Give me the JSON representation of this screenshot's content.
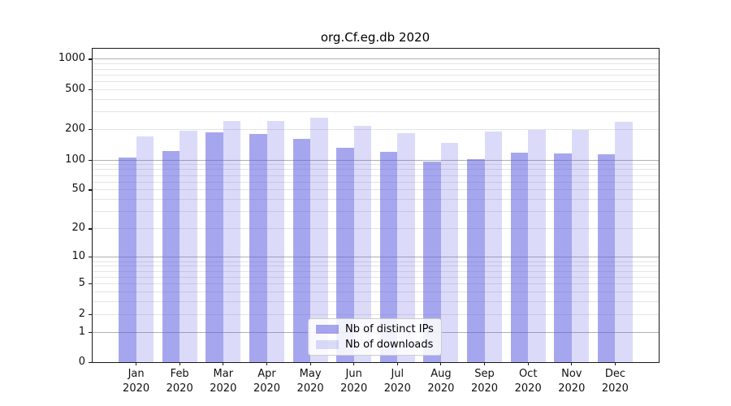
{
  "figure_title": "org.Cf.eg.db 2020",
  "chart_data": {
    "type": "bar",
    "title": "org.Cf.eg.db 2020",
    "year": "2020",
    "months": [
      "Jan",
      "Feb",
      "Mar",
      "Apr",
      "May",
      "Jun",
      "Jul",
      "Aug",
      "Sep",
      "Oct",
      "Nov",
      "Dec"
    ],
    "categories": [
      "Jan 2020",
      "Feb 2020",
      "Mar 2020",
      "Apr 2020",
      "May 2020",
      "Jun 2020",
      "Jul 2020",
      "Aug 2020",
      "Sep 2020",
      "Oct 2020",
      "Nov 2020",
      "Dec 2020"
    ],
    "series": [
      {
        "name": "Nb of distinct IPs",
        "color": "rgba(92,92,226,0.55)",
        "values": [
          105,
          121,
          188,
          180,
          161,
          130,
          120,
          96,
          101,
          118,
          116,
          112
        ]
      },
      {
        "name": "Nb of downloads",
        "color": "rgba(92,92,226,0.22)",
        "values": [
          169,
          192,
          240,
          244,
          259,
          215,
          184,
          146,
          189,
          196,
          196,
          236
        ]
      }
    ],
    "xlabel": "",
    "ylabel": "",
    "y_axis": {
      "scale": "log1p",
      "max": 1259,
      "ticks": [
        {
          "value": 1000,
          "label": "1000",
          "major": true
        },
        {
          "value": 500,
          "label": "500",
          "major": false
        },
        {
          "value": 200,
          "label": "200",
          "major": false
        },
        {
          "value": 100,
          "label": "100",
          "major": true
        },
        {
          "value": 50,
          "label": "50",
          "major": false
        },
        {
          "value": 20,
          "label": "20",
          "major": false
        },
        {
          "value": 10,
          "label": "10",
          "major": true
        },
        {
          "value": 5,
          "label": "5",
          "major": false
        },
        {
          "value": 2,
          "label": "2",
          "major": false
        },
        {
          "value": 1,
          "label": "1",
          "major": true
        },
        {
          "value": 0,
          "label": "0",
          "major": false
        }
      ],
      "minor_gridlines": [
        3,
        4,
        6,
        7,
        8,
        9,
        30,
        40,
        60,
        70,
        80,
        90,
        300,
        400,
        600,
        700,
        800,
        900
      ]
    },
    "legend": {
      "entries": [
        "Nb of distinct IPs",
        "Nb of downloads"
      ],
      "position": "lower center"
    },
    "grid": true
  },
  "colors": {
    "background": "#ffffff",
    "bar_distinct_ips": "rgba(92,92,226,0.55)",
    "bar_downloads": "rgba(92,92,226,0.22)",
    "grid_major": "#b0b0b0",
    "grid_minor": "#e4e4e4",
    "axis": "#1a1a1a",
    "legend_border": "#cccccc"
  }
}
